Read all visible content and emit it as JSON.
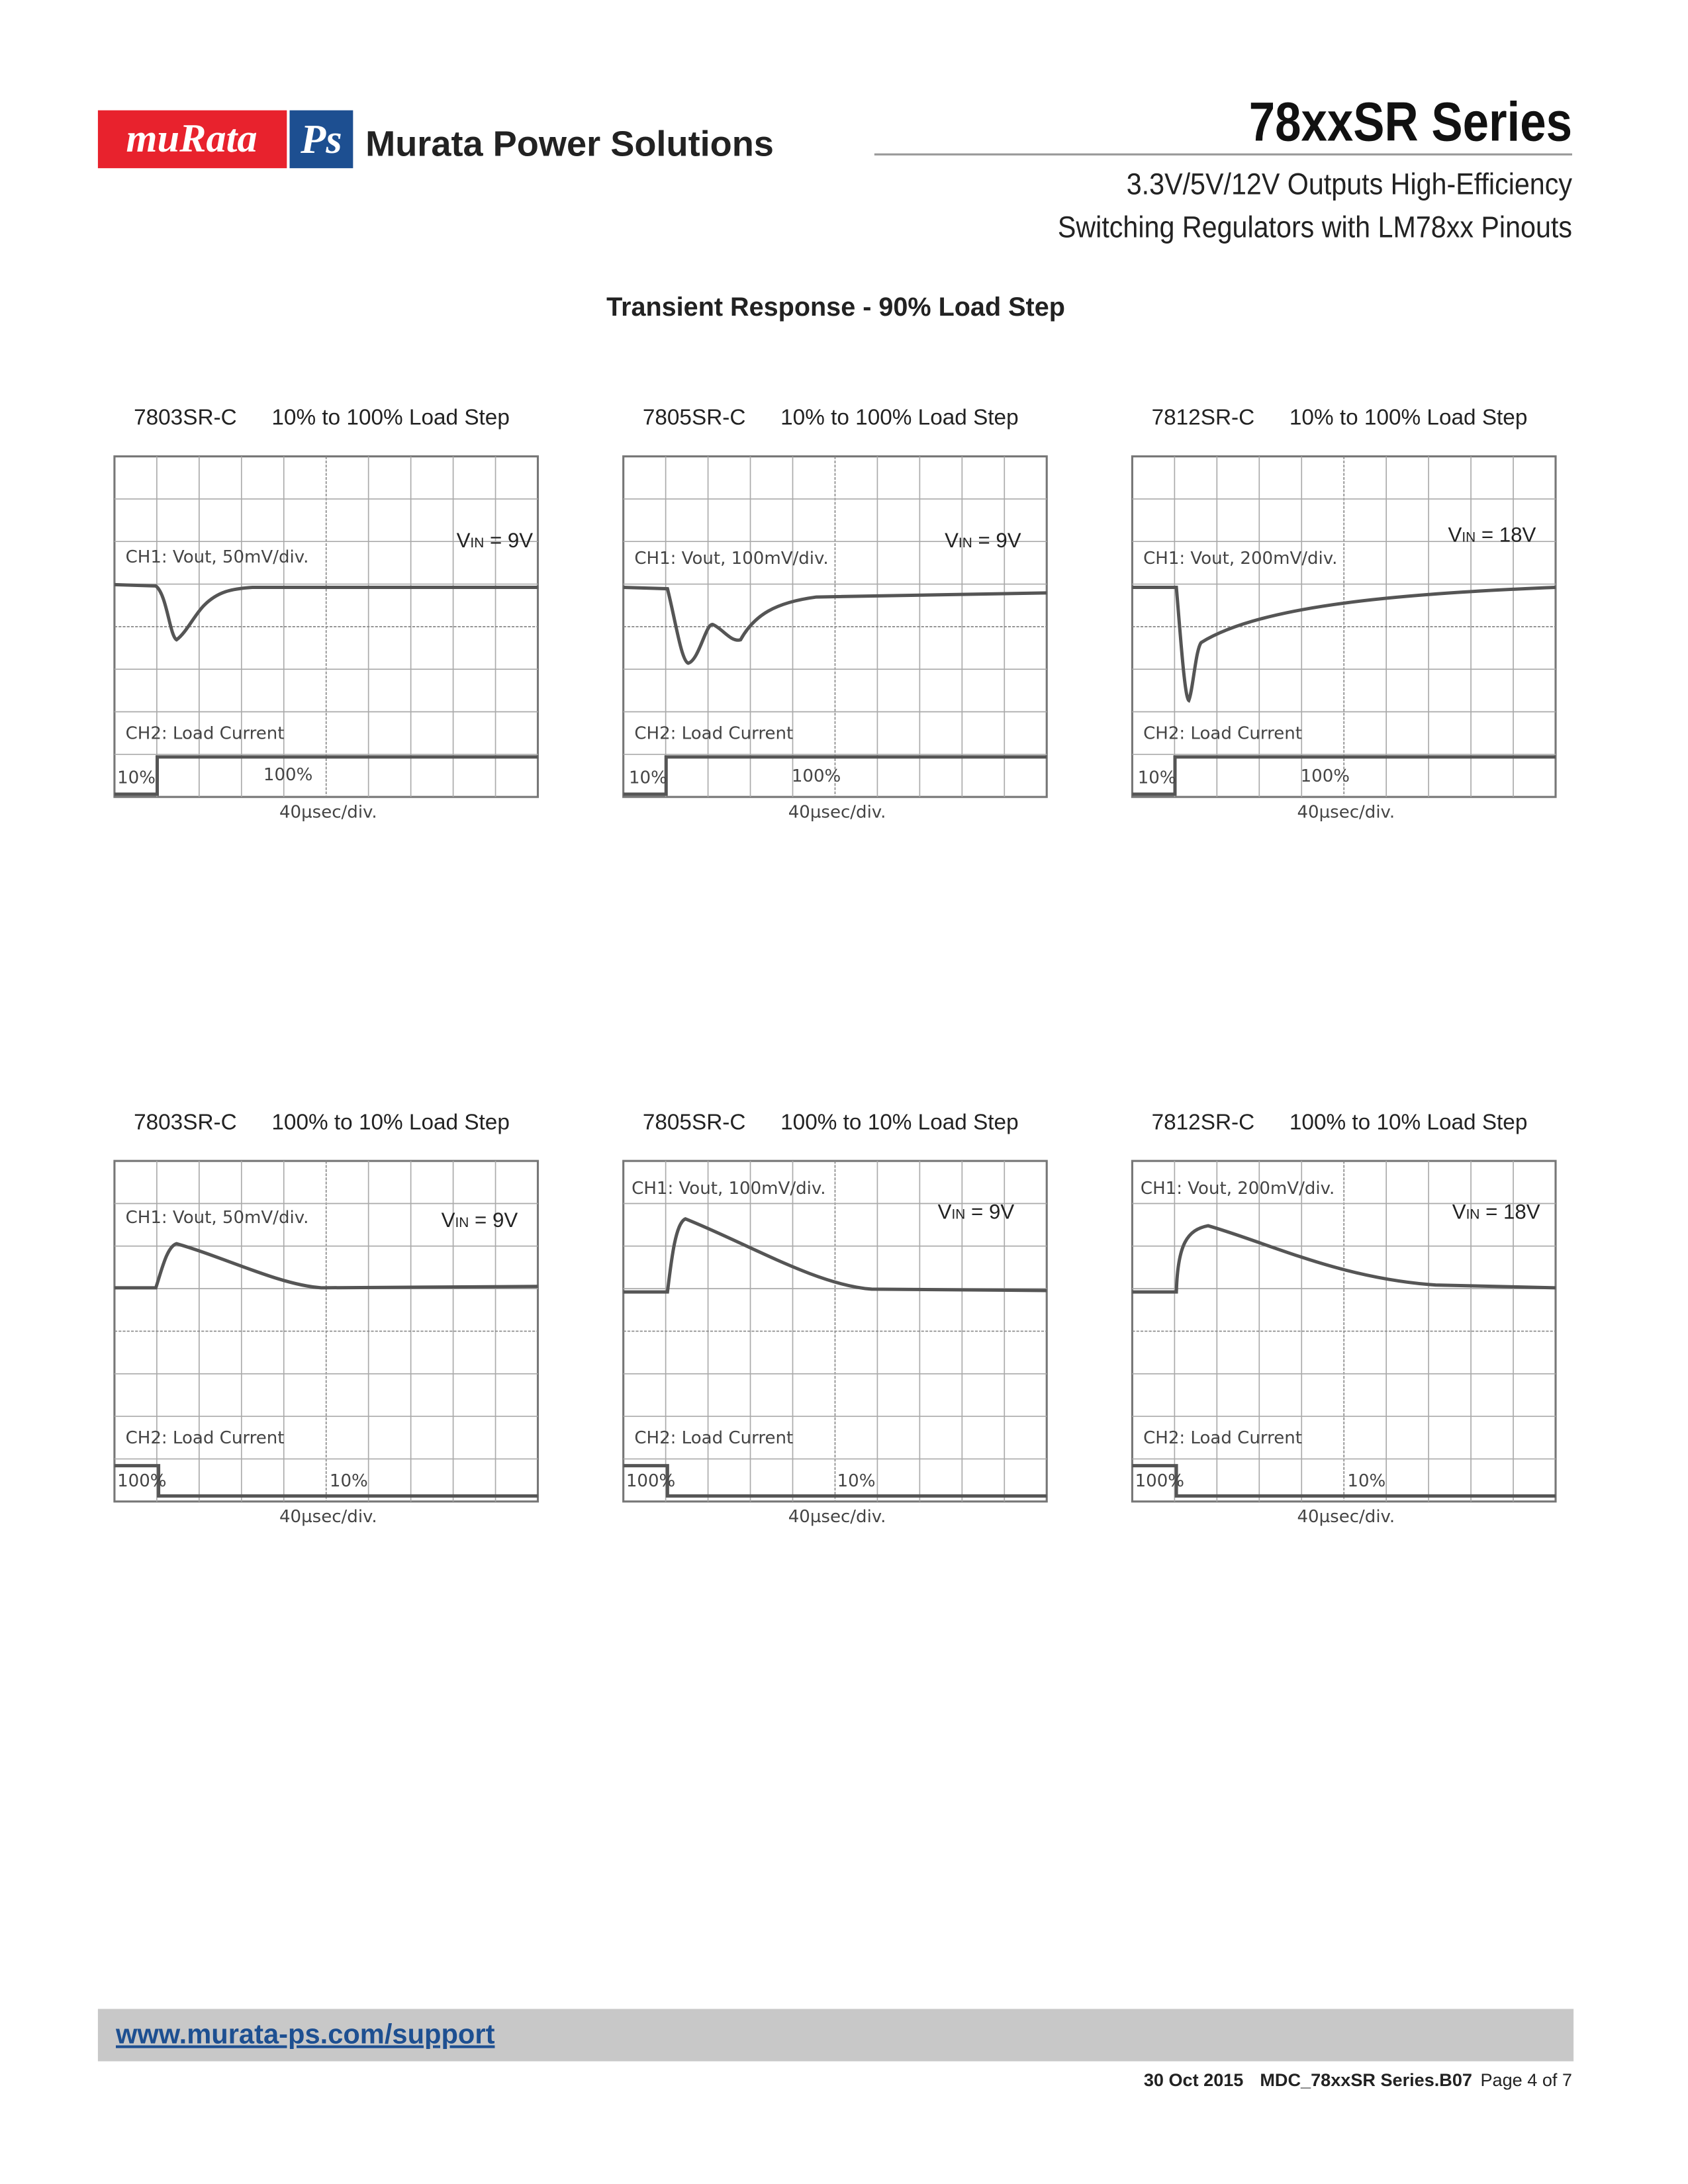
{
  "header": {
    "logo": "muRata",
    "logo_mark": "Ps",
    "company": "Murata Power Solutions",
    "series": "78xxSR Series",
    "subtitle_1": "3.3V/5V/12V Outputs High-Efficiency",
    "subtitle_2": "Switching Regulators with LM78xx Pinouts"
  },
  "section_title": "Transient Response - 90% Load  Step",
  "panels": [
    {
      "part": "7803SR-C",
      "step": "10% to 100% Load Step",
      "ch1": "CH1: Vout, 50mV/div.",
      "vin": {
        "v": "V",
        "sub": "IN",
        "rest": " = 9V"
      },
      "ch2": "CH2:  Load Current",
      "left": "10%",
      "right": "100%",
      "timebase": "40µsec/div."
    },
    {
      "part": "7805SR-C",
      "step": "10% to 100% Load Step",
      "ch1": "CH1: Vout, 100mV/div.",
      "vin": {
        "v": "V",
        "sub": "IN",
        "rest": " = 9V"
      },
      "ch2": "CH2:  Load Current",
      "left": "10%",
      "right": "100%",
      "timebase": "40µsec/div."
    },
    {
      "part": "7812SR-C",
      "step": "10% to 100% Load Step",
      "ch1": "CH1: Vout, 200mV/div.",
      "vin": {
        "v": "V",
        "sub": "IN",
        "rest": " = 18V"
      },
      "ch2": "CH2:  Load Current",
      "left": "10%",
      "right": "100%",
      "timebase": "40µsec/div."
    },
    {
      "part": "7803SR-C",
      "step": "100% to 10% Load Step",
      "ch1": "CH1: Vout, 50mV/div.",
      "vin": {
        "v": "V",
        "sub": "IN",
        "rest": " = 9V"
      },
      "ch2": "CH2:  Load Current",
      "left": "100%",
      "right": "10%",
      "timebase": "40µsec/div."
    },
    {
      "part": "7805SR-C",
      "step": "100% to 10% Load Step",
      "ch1": "CH1: Vout, 100mV/div.",
      "vin": {
        "v": "V",
        "sub": "IN",
        "rest": " = 9V"
      },
      "ch2": "CH2:  Load Current",
      "left": "100%",
      "right": "10%",
      "timebase": "40µsec/div."
    },
    {
      "part": "7812SR-C",
      "step": "100% to 10% Load Step",
      "ch1": "CH1: Vout, 200mV/div.",
      "vin": {
        "v": "V",
        "sub": "IN",
        "rest": " = 18V"
      },
      "ch2": "CH2:  Load Current",
      "left": "100%",
      "right": "10%",
      "timebase": "40µsec/div."
    }
  ],
  "footer": {
    "url": "www.murata-ps.com/support",
    "date": "30 Oct 2015",
    "doc": "MDC_78xxSR Series.B07",
    "page": "Page 4 of 7"
  }
}
